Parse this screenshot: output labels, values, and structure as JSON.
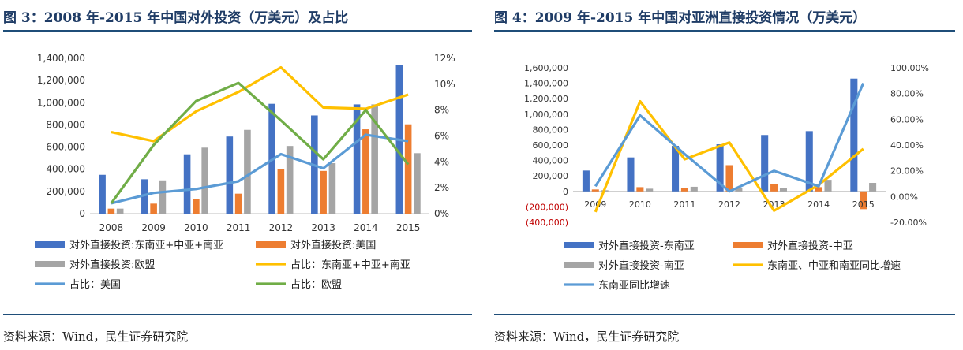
{
  "left": {
    "title": "图 3：2008 年-2015 年中国对外投资（万美元）及占比",
    "source": "资料来源：Wind，民生证券研究院",
    "chart_data": {
      "type": "bar",
      "categories": [
        "2008",
        "2009",
        "2010",
        "2011",
        "2012",
        "2013",
        "2014",
        "2015"
      ],
      "ylim_left": [
        0,
        1400000
      ],
      "yticks_left": [
        "0",
        "200,000",
        "400,000",
        "600,000",
        "800,000",
        "1,000,000",
        "1,200,000",
        "1,400,000"
      ],
      "ylim_right": [
        0,
        12
      ],
      "yticks_right": [
        "0%",
        "2%",
        "4%",
        "6%",
        "8%",
        "10%",
        "12%"
      ],
      "bar_series": [
        {
          "name": "对外直接投资:东南亚+中亚+南亚",
          "color": "#4472c4",
          "values": [
            350000,
            310000,
            535000,
            695000,
            990000,
            885000,
            985000,
            1340000
          ]
        },
        {
          "name": "对外直接投资:美国",
          "color": "#ed7d31",
          "values": [
            45000,
            90000,
            130000,
            180000,
            405000,
            385000,
            760000,
            805000
          ]
        },
        {
          "name": "对外直接投资:欧盟",
          "color": "#a5a5a5",
          "values": [
            45000,
            300000,
            595000,
            755000,
            610000,
            455000,
            985000,
            545000
          ]
        }
      ],
      "line_series": [
        {
          "name": "占比：东南亚+中亚+南亚",
          "color": "#ffc000",
          "values": [
            6.3,
            5.6,
            7.9,
            9.4,
            11.3,
            8.2,
            8.1,
            9.2
          ]
        },
        {
          "name": "占比：美国",
          "color": "#5b9bd5",
          "values": [
            0.8,
            1.6,
            1.9,
            2.5,
            4.6,
            3.5,
            6.1,
            5.6
          ]
        },
        {
          "name": "占比：欧盟",
          "color": "#70ad47",
          "values": [
            0.8,
            5.3,
            8.7,
            10.1,
            7.2,
            4.2,
            8.0,
            3.8
          ]
        }
      ],
      "legend": [
        {
          "name": "对外直接投资:东南亚+中亚+南亚",
          "kind": "bar",
          "color": "#4472c4"
        },
        {
          "name": "对外直接投资:美国",
          "kind": "bar",
          "color": "#ed7d31"
        },
        {
          "name": "对外直接投资:欧盟",
          "kind": "bar",
          "color": "#a5a5a5"
        },
        {
          "name": "占比：东南亚+中亚+南亚",
          "kind": "line",
          "color": "#ffc000"
        },
        {
          "name": "占比：美国",
          "kind": "line",
          "color": "#5b9bd5"
        },
        {
          "name": "占比：欧盟",
          "kind": "line",
          "color": "#70ad47"
        }
      ]
    }
  },
  "right": {
    "title": "图 4：2009 年-2015 年中国对亚洲直接投资情况（万美元）",
    "source": "资料来源：Wind，民生证券研究院",
    "chart_data": {
      "type": "bar",
      "categories": [
        "2009",
        "2010",
        "2011",
        "2012",
        "2013",
        "2014",
        "2015"
      ],
      "ylim_left": [
        -400000,
        1600000
      ],
      "yticks_left": [
        "(400,000)",
        "(200,000)",
        "0",
        "200,000",
        "400,000",
        "600,000",
        "800,000",
        "1,000,000",
        "1,200,000",
        "1,400,000",
        "1,600,000"
      ],
      "ylim_right": [
        -20,
        100
      ],
      "yticks_right": [
        "-20.00%",
        "0.00%",
        "20.00%",
        "40.00%",
        "60.00%",
        "80.00%",
        "100.00%"
      ],
      "bar_series": [
        {
          "name": "对外直接投资-东南亚",
          "color": "#4472c4",
          "values": [
            270000,
            440000,
            590000,
            610000,
            730000,
            780000,
            1460000
          ]
        },
        {
          "name": "对外直接投资-中亚",
          "color": "#ed7d31",
          "values": [
            25000,
            55000,
            45000,
            340000,
            100000,
            55000,
            -230000
          ]
        },
        {
          "name": "对外直接投资-南亚",
          "color": "#a5a5a5",
          "values": [
            15000,
            35000,
            60000,
            40000,
            45000,
            150000,
            110000
          ]
        }
      ],
      "line_series": [
        {
          "name": "东南亚、中亚和南亚同比增速",
          "color": "#ffc000",
          "values": [
            -12,
            74,
            29,
            42,
            -11,
            9,
            37
          ]
        },
        {
          "name": "东南亚同比增速",
          "color": "#5b9bd5",
          "values": [
            8,
            63,
            33,
            4,
            20,
            8,
            88
          ]
        }
      ],
      "legend": [
        {
          "name": "对外直接投资-东南亚",
          "kind": "bar",
          "color": "#4472c4"
        },
        {
          "name": "对外直接投资-中亚",
          "kind": "bar",
          "color": "#ed7d31"
        },
        {
          "name": "对外直接投资-南亚",
          "kind": "bar",
          "color": "#a5a5a5"
        },
        {
          "name": "东南亚、中亚和南亚同比增速",
          "kind": "line",
          "color": "#ffc000"
        },
        {
          "name": "东南亚同比增速",
          "kind": "line",
          "color": "#5b9bd5"
        }
      ]
    }
  }
}
